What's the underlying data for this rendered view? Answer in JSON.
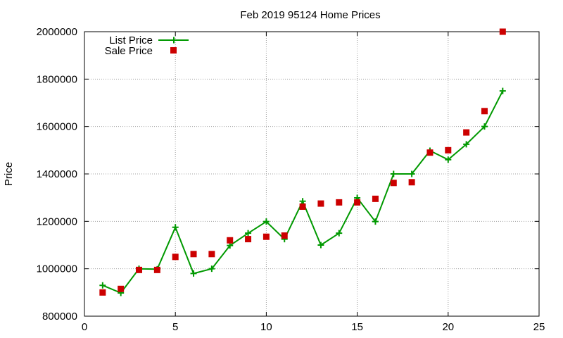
{
  "chart_data": {
    "type": "line",
    "title": "Feb 2019 95124 Home Prices",
    "xlabel": "",
    "ylabel": "Price",
    "xlim": [
      0,
      25
    ],
    "ylim": [
      800000,
      2000000
    ],
    "xticks": [
      0,
      5,
      10,
      15,
      20,
      25
    ],
    "yticks": [
      800000,
      1000000,
      1200000,
      1400000,
      1600000,
      1800000,
      2000000
    ],
    "xtick_labels": [
      "0",
      "5",
      "10",
      "15",
      "20",
      "25"
    ],
    "ytick_labels": [
      "800000",
      "1000000",
      "1200000",
      "1400000",
      "1600000",
      "1800000",
      "2000000"
    ],
    "grid": true,
    "legend_position": "top-left",
    "series": [
      {
        "name": "List Price",
        "style": "linespoints",
        "marker": "plus",
        "color": "#009900",
        "x": [
          1,
          2,
          3,
          4,
          5,
          6,
          7,
          8,
          9,
          10,
          11,
          12,
          13,
          14,
          15,
          16,
          17,
          18,
          19,
          20,
          21,
          22,
          23
        ],
        "y": [
          930000,
          898000,
          1000000,
          998000,
          1175000,
          980000,
          1000000,
          1098000,
          1150000,
          1199000,
          1125000,
          1285000,
          1100000,
          1150000,
          1299000,
          1199000,
          1400000,
          1400000,
          1498000,
          1460000,
          1525000,
          1600000,
          1750000
        ]
      },
      {
        "name": "Sale Price",
        "style": "points",
        "marker": "square",
        "color": "#cc0000",
        "x": [
          1,
          2,
          3,
          4,
          5,
          6,
          7,
          8,
          9,
          10,
          11,
          12,
          13,
          14,
          15,
          16,
          17,
          18,
          19,
          20,
          21,
          22,
          23
        ],
        "y": [
          900000,
          915000,
          995000,
          995000,
          1050000,
          1062000,
          1062000,
          1120000,
          1125000,
          1135000,
          1140000,
          1262000,
          1275000,
          1280000,
          1280000,
          1295000,
          1362000,
          1365000,
          1490000,
          1500000,
          1575000,
          1665000,
          2000000
        ]
      }
    ]
  }
}
